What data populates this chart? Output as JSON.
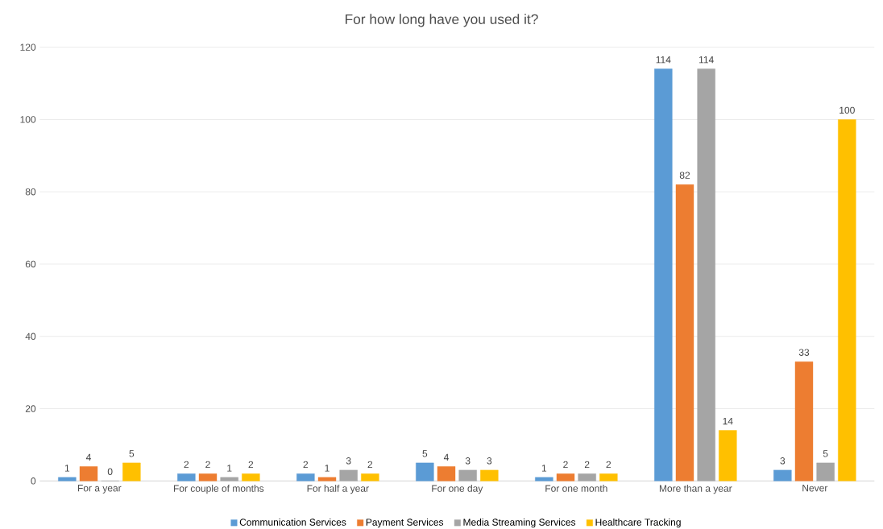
{
  "chart_data": {
    "type": "bar",
    "title": "For how long have you used it?",
    "categories": [
      "For a year",
      "For couple of months",
      "For half a year",
      "For one day",
      "For one month",
      "More than a year",
      "Never"
    ],
    "series": [
      {
        "name": "Communication Services",
        "color": "#5b9bd5",
        "values": [
          1,
          2,
          2,
          5,
          1,
          114,
          3
        ]
      },
      {
        "name": "Payment Services",
        "color": "#ed7d31",
        "values": [
          4,
          2,
          1,
          4,
          2,
          82,
          33
        ]
      },
      {
        "name": "Media Streaming Services",
        "color": "#a5a5a5",
        "values": [
          0,
          1,
          3,
          3,
          2,
          114,
          5
        ]
      },
      {
        "name": "Healthcare Tracking",
        "color": "#ffc000",
        "values": [
          5,
          2,
          2,
          3,
          2,
          14,
          100
        ]
      }
    ],
    "ylim": [
      0,
      120
    ],
    "yticks": [
      0,
      20,
      40,
      60,
      80,
      100,
      120
    ],
    "grid": "y",
    "legend": "bottom",
    "data_labels": true
  }
}
